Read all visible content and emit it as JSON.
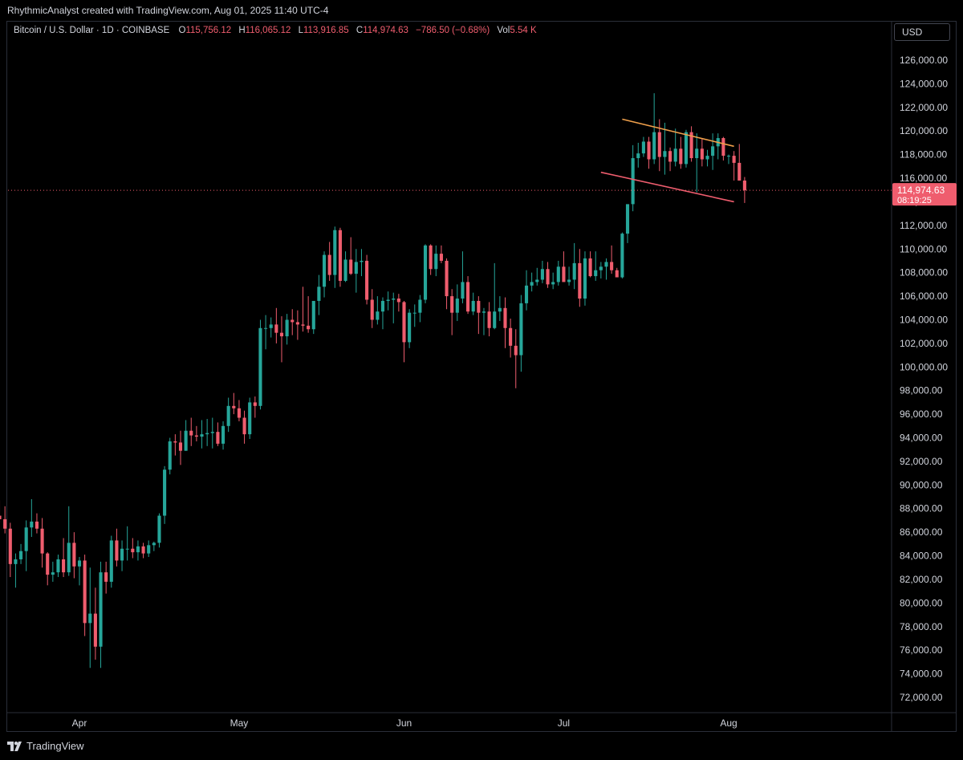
{
  "header": {
    "attribution": "RhythmicAnalyst created with TradingView.com, Aug 01, 2025 11:40 UTC-4"
  },
  "legend": {
    "symbol": "Bitcoin / U.S. Dollar · 1D · COINBASE",
    "o_label": "O",
    "o_value": "115,756.12",
    "h_label": "H",
    "h_value": "116,065.12",
    "l_label": "L",
    "l_value": "113,916.85",
    "c_label": "C",
    "c_value": "114,974.63",
    "change": "−786.50 (−0.68%)",
    "vol_label": "Vol",
    "vol_value": "5.54 K"
  },
  "currency": "USD",
  "price_tag": {
    "price": "114,974.63",
    "countdown": "08:19:25"
  },
  "footer": {
    "brand": "TradingView",
    "brand_icon": "tradingview-logo-icon"
  },
  "colors": {
    "up": "#26a69a",
    "down": "#ef5d6e",
    "upper_line": "#f0a04b",
    "lower_line": "#ef5d6e",
    "grid": "#000000",
    "current_price": "#ef5d6e"
  },
  "chart_data": {
    "type": "candlestick",
    "ylim": [
      70200,
      127600
    ],
    "y_ticks": [
      126000,
      124000,
      122000,
      120000,
      118000,
      116000,
      114000,
      112000,
      110000,
      108000,
      106000,
      104000,
      102000,
      100000,
      98000,
      96000,
      94000,
      92000,
      90000,
      88000,
      86000,
      84000,
      82000,
      80000,
      78000,
      76000,
      74000,
      72000
    ],
    "y_tick_labels": [
      "126,000.00",
      "124,000.00",
      "122,000.00",
      "120,000.00",
      "118,000.00",
      "116,000.00",
      "114,000.00",
      "112,000.00",
      "110,000.00",
      "108,000.00",
      "106,000.00",
      "104,000.00",
      "102,000.00",
      "100,000.00",
      "98,000.00",
      "96,000.00",
      "94,000.00",
      "92,000.00",
      "90,000.00",
      "88,000.00",
      "86,000.00",
      "84,000.00",
      "82,000.00",
      "80,000.00",
      "78,000.00",
      "76,000.00",
      "74,000.00",
      "72,000.00"
    ],
    "x_labels": [
      "Apr",
      "May",
      "Jun",
      "Jul",
      "Aug"
    ],
    "x_label_days": [
      0,
      30,
      61,
      91,
      122
    ],
    "first_day": -18,
    "last_day": 122,
    "current_price": 114974.63,
    "ohlc": [
      [
        86500,
        87200,
        83500,
        84000
      ],
      [
        84000,
        84900,
        83100,
        84300
      ],
      [
        84300,
        87900,
        84000,
        87400
      ],
      [
        87400,
        88700,
        86800,
        87100
      ],
      [
        87100,
        88200,
        85900,
        86300
      ],
      [
        86300,
        86800,
        82200,
        83300
      ],
      [
        83300,
        84200,
        81300,
        83700
      ],
      [
        83700,
        85000,
        83300,
        84400
      ],
      [
        84400,
        87000,
        82700,
        86400
      ],
      [
        86400,
        88800,
        85600,
        86900
      ],
      [
        86900,
        87600,
        85900,
        86300
      ],
      [
        86300,
        87200,
        83000,
        84200
      ],
      [
        84200,
        84300,
        81500,
        82400
      ],
      [
        82400,
        83500,
        81800,
        82600
      ],
      [
        82600,
        84100,
        82200,
        83700
      ],
      [
        83700,
        85500,
        82200,
        82600
      ],
      [
        82600,
        88200,
        82300,
        85100
      ],
      [
        85100,
        86000,
        82100,
        83100
      ],
      [
        83100,
        83900,
        81500,
        83600
      ],
      [
        83600,
        84100,
        77200,
        78300
      ],
      [
        78300,
        83000,
        74500,
        79100
      ],
      [
        79100,
        81300,
        75200,
        76300
      ],
      [
        76300,
        83500,
        74500,
        82600
      ],
      [
        82600,
        83500,
        80800,
        81800
      ],
      [
        81800,
        85700,
        81300,
        85300
      ],
      [
        85300,
        86300,
        83100,
        83600
      ],
      [
        83600,
        85300,
        82700,
        84600
      ],
      [
        84600,
        86500,
        83600,
        84600
      ],
      [
        84600,
        85500,
        83800,
        84300
      ],
      [
        84300,
        85300,
        83600,
        84800
      ],
      [
        84800,
        85100,
        83800,
        84200
      ],
      [
        84200,
        85300,
        83900,
        84900
      ],
      [
        84900,
        85200,
        84400,
        85100
      ],
      [
        85100,
        87600,
        84700,
        87400
      ],
      [
        87400,
        91600,
        86700,
        91300
      ],
      [
        91300,
        94000,
        90900,
        93700
      ],
      [
        93700,
        94300,
        92500,
        93600
      ],
      [
        93600,
        94600,
        91700,
        92900
      ],
      [
        92900,
        95500,
        92900,
        94600
      ],
      [
        94600,
        95700,
        93300,
        94200
      ],
      [
        94200,
        95000,
        93700,
        94100
      ],
      [
        94100,
        95500,
        93100,
        94300
      ],
      [
        94300,
        95600,
        93300,
        94400
      ],
      [
        94400,
        95700,
        93100,
        94500
      ],
      [
        94500,
        95300,
        93300,
        93500
      ],
      [
        93500,
        95400,
        93000,
        95000
      ],
      [
        95000,
        97400,
        94500,
        96700
      ],
      [
        96700,
        97800,
        96000,
        96500
      ],
      [
        96500,
        97200,
        95400,
        95700
      ],
      [
        95700,
        96300,
        93500,
        94300
      ],
      [
        94300,
        97400,
        93900,
        97000
      ],
      [
        97000,
        97500,
        95700,
        96700
      ],
      [
        96700,
        104000,
        96400,
        103300
      ],
      [
        103300,
        104400,
        101500,
        103300
      ],
      [
        103300,
        104200,
        102500,
        103600
      ],
      [
        103600,
        105000,
        102000,
        102900
      ],
      [
        102900,
        104300,
        100400,
        102600
      ],
      [
        102600,
        104500,
        101900,
        104000
      ],
      [
        104000,
        104900,
        102700,
        103800
      ],
      [
        103800,
        104800,
        102300,
        103600
      ],
      [
        103600,
        106800,
        103000,
        103500
      ],
      [
        103500,
        106000,
        102900,
        103200
      ],
      [
        103200,
        105500,
        102800,
        105600
      ],
      [
        105600,
        107800,
        104400,
        106800
      ],
      [
        106800,
        109800,
        105900,
        109500
      ],
      [
        109500,
        110600,
        107300,
        107800
      ],
      [
        107800,
        111900,
        106700,
        111600
      ],
      [
        111600,
        111800,
        106800,
        107300
      ],
      [
        107300,
        109800,
        107200,
        109100
      ],
      [
        109100,
        111000,
        107800,
        107900
      ],
      [
        107900,
        110000,
        106300,
        108900
      ],
      [
        108900,
        110000,
        107700,
        109000
      ],
      [
        109000,
        109500,
        105300,
        105700
      ],
      [
        105700,
        106600,
        103300,
        104000
      ],
      [
        104000,
        106000,
        103600,
        104700
      ],
      [
        104700,
        105900,
        103200,
        105600
      ],
      [
        105600,
        106400,
        104800,
        105700
      ],
      [
        105700,
        106300,
        103700,
        105800
      ],
      [
        105800,
        106200,
        104700,
        105500
      ],
      [
        105500,
        105600,
        100400,
        102100
      ],
      [
        102100,
        104900,
        101600,
        104600
      ],
      [
        104600,
        105300,
        103400,
        104600
      ],
      [
        104600,
        106100,
        103800,
        105700
      ],
      [
        105700,
        110400,
        105400,
        110300
      ],
      [
        110300,
        110400,
        107800,
        108300
      ],
      [
        108300,
        110300,
        107700,
        109600
      ],
      [
        109600,
        110300,
        108800,
        109000
      ],
      [
        109000,
        109200,
        104900,
        106000
      ],
      [
        106000,
        106600,
        102700,
        104600
      ],
      [
        104600,
        107000,
        103900,
        105800
      ],
      [
        105800,
        109800,
        105400,
        107200
      ],
      [
        107200,
        107700,
        104500,
        104700
      ],
      [
        104700,
        106300,
        104400,
        105600
      ],
      [
        105600,
        106000,
        102800,
        104600
      ],
      [
        104600,
        105000,
        102700,
        104700
      ],
      [
        104700,
        105500,
        102600,
        103300
      ],
      [
        103300,
        108800,
        103200,
        104700
      ],
      [
        104700,
        106000,
        103900,
        105000
      ],
      [
        105000,
        105900,
        101600,
        103300
      ],
      [
        103300,
        104100,
        100800,
        101800
      ],
      [
        101800,
        103200,
        98200,
        101000
      ],
      [
        101000,
        106100,
        99600,
        105400
      ],
      [
        105400,
        108200,
        104800,
        106900
      ],
      [
        106900,
        108000,
        106400,
        107200
      ],
      [
        107200,
        108400,
        106900,
        107400
      ],
      [
        107400,
        109000,
        107100,
        108300
      ],
      [
        108300,
        108900,
        106700,
        107000
      ],
      [
        107000,
        108000,
        106600,
        107200
      ],
      [
        107200,
        109000,
        106900,
        108500
      ],
      [
        108500,
        109800,
        107300,
        107200
      ],
      [
        107200,
        108500,
        106900,
        107400
      ],
      [
        107400,
        110500,
        106600,
        108800
      ],
      [
        108800,
        110000,
        105100,
        105800
      ],
      [
        105800,
        109800,
        105200,
        109200
      ],
      [
        109200,
        109800,
        107600,
        107700
      ],
      [
        107700,
        109800,
        107300,
        108200
      ],
      [
        108200,
        108900,
        107500,
        108500
      ],
      [
        108500,
        109200,
        107400,
        108900
      ],
      [
        108900,
        110300,
        107900,
        108200
      ],
      [
        108200,
        108400,
        107800,
        107600
      ],
      [
        107600,
        111400,
        107500,
        111300
      ],
      [
        111300,
        113700,
        110500,
        113800
      ],
      [
        113800,
        118800,
        113200,
        117700
      ],
      [
        117700,
        119000,
        116900,
        118100
      ],
      [
        118100,
        119500,
        117800,
        119100
      ],
      [
        119100,
        119500,
        116800,
        117600
      ],
      [
        117600,
        123200,
        117200,
        119900
      ],
      [
        119900,
        121000,
        116600,
        117800
      ],
      [
        117800,
        120700,
        116300,
        118300
      ],
      [
        118300,
        118600,
        116600,
        117400
      ],
      [
        117400,
        120200,
        117000,
        118500
      ],
      [
        118500,
        119500,
        116800,
        117200
      ],
      [
        117200,
        120100,
        116900,
        119900
      ],
      [
        119900,
        120400,
        117400,
        117700
      ],
      [
        117700,
        119800,
        114800,
        118500
      ],
      [
        118500,
        119400,
        117000,
        117600
      ],
      [
        117600,
        118400,
        117000,
        117900
      ],
      [
        117900,
        119800,
        116700,
        118700
      ],
      [
        118700,
        119800,
        117600,
        119400
      ],
      [
        119400,
        119500,
        117500,
        117900
      ],
      [
        117900,
        118000,
        117200,
        117900
      ],
      [
        117900,
        118300,
        115800,
        117300
      ],
      [
        117300,
        118900,
        115900,
        115800
      ],
      [
        115800,
        116100,
        113900,
        114970
      ]
    ],
    "trendlines": [
      {
        "name": "upper",
        "from": [
          102,
          121000
        ],
        "to": [
          123,
          118700
        ]
      },
      {
        "name": "lower",
        "from": [
          98,
          116500
        ],
        "to": [
          123,
          114000
        ]
      }
    ]
  }
}
